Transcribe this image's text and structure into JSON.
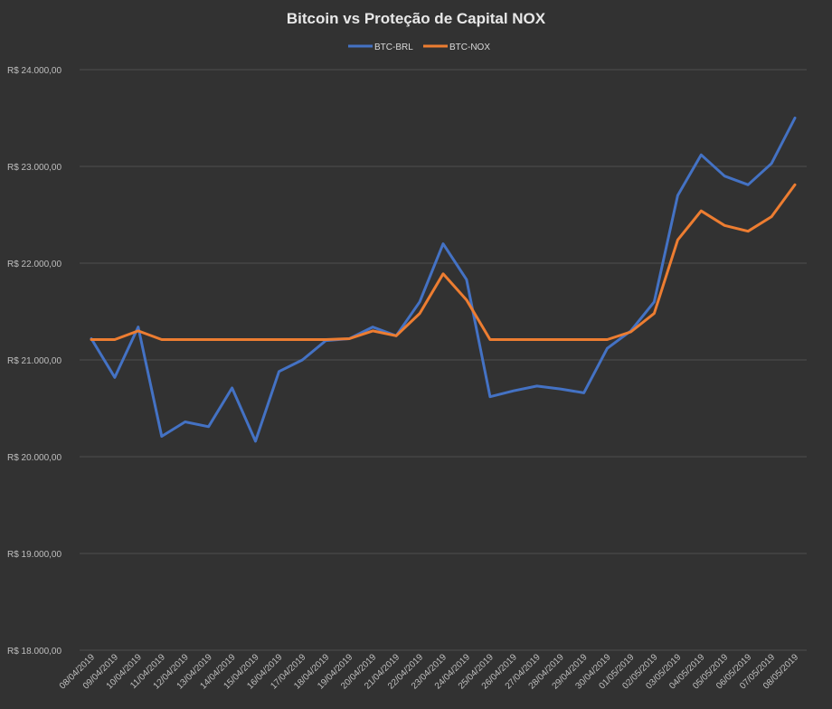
{
  "chart_data": {
    "type": "line",
    "title": "Bitcoin vs Proteção de Capital NOX",
    "legend_position": "top",
    "grid": true,
    "ylim": [
      18000,
      24000
    ],
    "yticks": [
      18000,
      19000,
      20000,
      21000,
      22000,
      23000,
      24000
    ],
    "ytick_labels": [
      "R$ 18.000,00",
      "R$ 19.000,00",
      "R$ 20.000,00",
      "R$ 21.000,00",
      "R$ 22.000,00",
      "R$ 23.000,00",
      "R$ 24.000,00"
    ],
    "categories": [
      "08/04/2019",
      "09/04/2019",
      "10/04/2019",
      "11/04/2019",
      "12/04/2019",
      "13/04/2019",
      "14/04/2019",
      "15/04/2019",
      "16/04/2019",
      "17/04/2019",
      "18/04/2019",
      "19/04/2019",
      "20/04/2019",
      "21/04/2019",
      "22/04/2019",
      "23/04/2019",
      "24/04/2019",
      "25/04/2019",
      "26/04/2019",
      "27/04/2019",
      "28/04/2019",
      "29/04/2019",
      "30/04/2019",
      "01/05/2019",
      "02/05/2019",
      "03/05/2019",
      "04/05/2019",
      "05/05/2019",
      "06/05/2019",
      "07/05/2019",
      "08/05/2019"
    ],
    "series": [
      {
        "name": "BTC-BRL",
        "color": "#4472c4",
        "values": [
          21220,
          20820,
          21340,
          20210,
          20360,
          20310,
          20710,
          20160,
          20880,
          21000,
          21200,
          21220,
          21340,
          21250,
          21600,
          22200,
          21830,
          20620,
          20680,
          20730,
          20700,
          20660,
          21120,
          21300,
          21600,
          22700,
          23120,
          22900,
          22810,
          23030,
          23500
        ]
      },
      {
        "name": "BTC-NOX",
        "color": "#ed7d31",
        "values": [
          21210,
          21210,
          21300,
          21210,
          21210,
          21210,
          21210,
          21210,
          21210,
          21210,
          21210,
          21220,
          21300,
          21250,
          21480,
          21890,
          21620,
          21210,
          21210,
          21210,
          21210,
          21210,
          21210,
          21290,
          21480,
          22240,
          22540,
          22390,
          22330,
          22480,
          22810
        ]
      }
    ]
  }
}
